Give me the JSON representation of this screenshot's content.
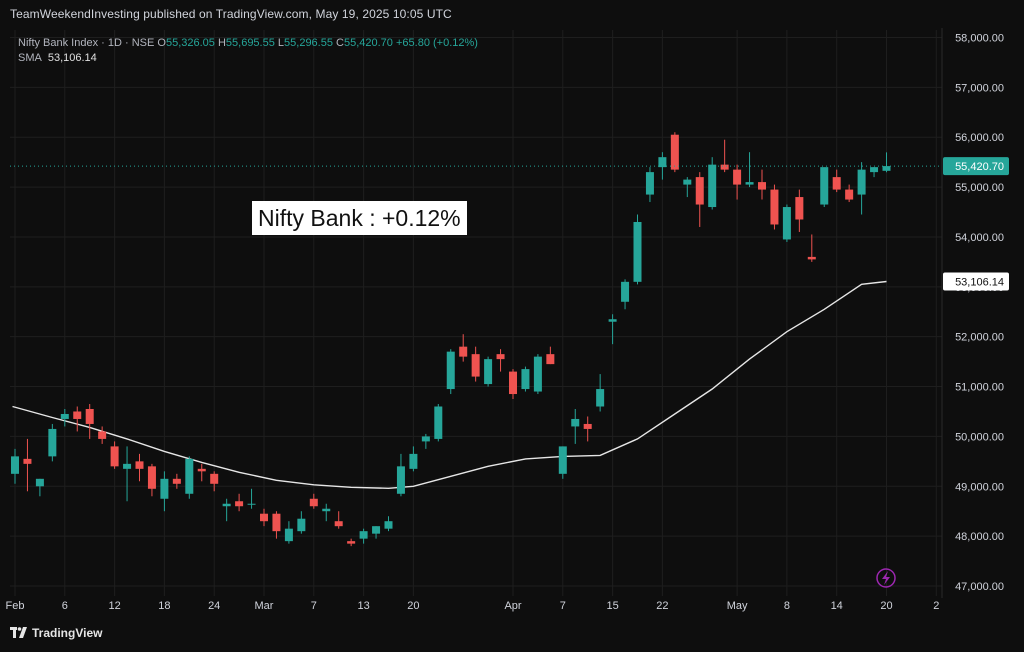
{
  "header": {
    "published_text": "TeamWeekendInvesting published on TradingView.com, May 19, 2025 10:05 UTC"
  },
  "legend": {
    "symbol_line": "Nifty Bank Index · 1D · NSE",
    "open_label": "O",
    "open_value": "55,326.05",
    "high_label": "H",
    "high_value": "55,695.55",
    "low_label": "L",
    "low_value": "55,296.55",
    "close_label": "C",
    "close_value": "55,420.70",
    "change": "+65.80 (+0.12%)",
    "sma_label": "SMA",
    "sma_value": "53,106.14"
  },
  "annotation": {
    "text": "Nifty Bank : +0.12%"
  },
  "footer": {
    "brand": "TradingView"
  },
  "colors": {
    "up": "#26a69a",
    "down": "#ef5350",
    "sma": "#e6e6e6",
    "grid": "#1e1e1e",
    "axis_text": "#d1d4dc",
    "price_tag_bg": "#26a69a"
  },
  "chart_data": {
    "type": "candlestick",
    "title": "",
    "ylim": [
      46800,
      58150
    ],
    "y_ticks": [
      47000,
      48000,
      49000,
      50000,
      51000,
      52000,
      53000,
      54000,
      55000,
      56000,
      57000,
      58000
    ],
    "y_tick_labels": [
      "47,000.00",
      "48,000.00",
      "49,000.00",
      "50,000.00",
      "51,000.00",
      "52,000.00",
      "53,000.00",
      "54,000.00",
      "55,000.00",
      "56,000.00",
      "57,000.00",
      "58,000.00"
    ],
    "x_ticks": [
      {
        "index": 0,
        "label": "Feb"
      },
      {
        "index": 4,
        "label": "6"
      },
      {
        "index": 8,
        "label": "12"
      },
      {
        "index": 12,
        "label": "18"
      },
      {
        "index": 16,
        "label": "24"
      },
      {
        "index": 20,
        "label": "Mar"
      },
      {
        "index": 24,
        "label": "7"
      },
      {
        "index": 28,
        "label": "13"
      },
      {
        "index": 32,
        "label": "20"
      },
      {
        "index": 40,
        "label": "Apr"
      },
      {
        "index": 44,
        "label": "7"
      },
      {
        "index": 48,
        "label": "15"
      },
      {
        "index": 52,
        "label": "22"
      },
      {
        "index": 58,
        "label": "May"
      },
      {
        "index": 62,
        "label": "8"
      },
      {
        "index": 66,
        "label": "14"
      },
      {
        "index": 70,
        "label": "20"
      },
      {
        "index": 74,
        "label": "2"
      }
    ],
    "last_price": 55420.7,
    "last_price_label": "55,420.70",
    "sma_last": 53106.14,
    "sma_last_label": "53,106.14",
    "candles": [
      {
        "o": 49250,
        "h": 49750,
        "l": 49050,
        "c": 49600
      },
      {
        "o": 49550,
        "h": 49950,
        "l": 48900,
        "c": 49450
      },
      {
        "o": 49000,
        "h": 49150,
        "l": 48800,
        "c": 49150
      },
      {
        "o": 49600,
        "h": 50250,
        "l": 49500,
        "c": 50150
      },
      {
        "o": 50350,
        "h": 50550,
        "l": 50200,
        "c": 50450
      },
      {
        "o": 50500,
        "h": 50600,
        "l": 50100,
        "c": 50350
      },
      {
        "o": 50550,
        "h": 50650,
        "l": 49950,
        "c": 50250
      },
      {
        "o": 50100,
        "h": 50200,
        "l": 49850,
        "c": 49950
      },
      {
        "o": 49800,
        "h": 49900,
        "l": 49350,
        "c": 49400
      },
      {
        "o": 49350,
        "h": 49800,
        "l": 48700,
        "c": 49450
      },
      {
        "o": 49500,
        "h": 49650,
        "l": 49100,
        "c": 49350
      },
      {
        "o": 49400,
        "h": 49450,
        "l": 48800,
        "c": 48950
      },
      {
        "o": 48750,
        "h": 49300,
        "l": 48500,
        "c": 49150
      },
      {
        "o": 49150,
        "h": 49250,
        "l": 48950,
        "c": 49050
      },
      {
        "o": 48850,
        "h": 49600,
        "l": 48750,
        "c": 49550
      },
      {
        "o": 49350,
        "h": 49450,
        "l": 49100,
        "c": 49300
      },
      {
        "o": 49250,
        "h": 49300,
        "l": 48900,
        "c": 49050
      },
      {
        "o": 48600,
        "h": 48750,
        "l": 48300,
        "c": 48650
      },
      {
        "o": 48700,
        "h": 48850,
        "l": 48500,
        "c": 48600
      },
      {
        "o": 48650,
        "h": 48950,
        "l": 48550,
        "c": 48650
      },
      {
        "o": 48450,
        "h": 48550,
        "l": 48200,
        "c": 48300
      },
      {
        "o": 48450,
        "h": 48500,
        "l": 47950,
        "c": 48100
      },
      {
        "o": 47900,
        "h": 48300,
        "l": 47850,
        "c": 48150
      },
      {
        "o": 48100,
        "h": 48500,
        "l": 48050,
        "c": 48350
      },
      {
        "o": 48750,
        "h": 48850,
        "l": 48550,
        "c": 48600
      },
      {
        "o": 48500,
        "h": 48650,
        "l": 48300,
        "c": 48550
      },
      {
        "o": 48300,
        "h": 48500,
        "l": 48150,
        "c": 48200
      },
      {
        "o": 47900,
        "h": 47950,
        "l": 47800,
        "c": 47850
      },
      {
        "o": 47950,
        "h": 48150,
        "l": 47850,
        "c": 48100
      },
      {
        "o": 48050,
        "h": 48200,
        "l": 47950,
        "c": 48200
      },
      {
        "o": 48150,
        "h": 48400,
        "l": 48100,
        "c": 48300
      },
      {
        "o": 48850,
        "h": 49650,
        "l": 48800,
        "c": 49400
      },
      {
        "o": 49350,
        "h": 49800,
        "l": 49300,
        "c": 49650
      },
      {
        "o": 49900,
        "h": 50050,
        "l": 49750,
        "c": 50000
      },
      {
        "o": 49950,
        "h": 50650,
        "l": 49900,
        "c": 50600
      },
      {
        "o": 50950,
        "h": 51750,
        "l": 50850,
        "c": 51700
      },
      {
        "o": 51800,
        "h": 52050,
        "l": 51500,
        "c": 51600
      },
      {
        "o": 51650,
        "h": 51800,
        "l": 51100,
        "c": 51200
      },
      {
        "o": 51050,
        "h": 51600,
        "l": 51000,
        "c": 51550
      },
      {
        "o": 51650,
        "h": 51750,
        "l": 51300,
        "c": 51550
      },
      {
        "o": 51300,
        "h": 51350,
        "l": 50750,
        "c": 50850
      },
      {
        "o": 50950,
        "h": 51400,
        "l": 50900,
        "c": 51350
      },
      {
        "o": 50900,
        "h": 51650,
        "l": 50850,
        "c": 51600
      },
      {
        "o": 51650,
        "h": 51800,
        "l": 51450,
        "c": 51450
      },
      {
        "o": 49250,
        "h": 49800,
        "l": 49150,
        "c": 49800
      },
      {
        "o": 50200,
        "h": 50550,
        "l": 49850,
        "c": 50350
      },
      {
        "o": 50250,
        "h": 50400,
        "l": 49900,
        "c": 50150
      },
      {
        "o": 50600,
        "h": 51250,
        "l": 50500,
        "c": 50950
      },
      {
        "o": 52300,
        "h": 52450,
        "l": 51850,
        "c": 52350
      },
      {
        "o": 52700,
        "h": 53150,
        "l": 52550,
        "c": 53100
      },
      {
        "o": 53100,
        "h": 54450,
        "l": 53050,
        "c": 54300
      },
      {
        "o": 54850,
        "h": 55400,
        "l": 54700,
        "c": 55300
      },
      {
        "o": 55400,
        "h": 55700,
        "l": 55150,
        "c": 55600
      },
      {
        "o": 56050,
        "h": 56100,
        "l": 55300,
        "c": 55350
      },
      {
        "o": 55050,
        "h": 55200,
        "l": 54800,
        "c": 55150
      },
      {
        "o": 55200,
        "h": 55300,
        "l": 54200,
        "c": 54650
      },
      {
        "o": 54600,
        "h": 55600,
        "l": 54550,
        "c": 55450
      },
      {
        "o": 55450,
        "h": 55950,
        "l": 55300,
        "c": 55350
      },
      {
        "o": 55350,
        "h": 55450,
        "l": 54750,
        "c": 55050
      },
      {
        "o": 55050,
        "h": 55700,
        "l": 55000,
        "c": 55100
      },
      {
        "o": 55100,
        "h": 55350,
        "l": 54750,
        "c": 54950
      },
      {
        "o": 54950,
        "h": 55050,
        "l": 54150,
        "c": 54250
      },
      {
        "o": 53950,
        "h": 54650,
        "l": 53900,
        "c": 54600
      },
      {
        "o": 54800,
        "h": 54950,
        "l": 54100,
        "c": 54350
      },
      {
        "o": 53600,
        "h": 54050,
        "l": 53500,
        "c": 53550
      },
      {
        "o": 54650,
        "h": 55350,
        "l": 54600,
        "c": 55400
      },
      {
        "o": 55200,
        "h": 55350,
        "l": 54900,
        "c": 54950
      },
      {
        "o": 54950,
        "h": 55050,
        "l": 54700,
        "c": 54750
      },
      {
        "o": 54850,
        "h": 55500,
        "l": 54450,
        "c": 55350
      },
      {
        "o": 55300,
        "h": 55400,
        "l": 55200,
        "c": 55400
      },
      {
        "o": 55326,
        "h": 55696,
        "l": 55297,
        "c": 55421
      }
    ],
    "sma_series": [
      [
        -0.2,
        50600
      ],
      [
        3,
        50380
      ],
      [
        6,
        50180
      ],
      [
        9,
        49950
      ],
      [
        12,
        49700
      ],
      [
        15,
        49480
      ],
      [
        18,
        49280
      ],
      [
        21,
        49120
      ],
      [
        24,
        49030
      ],
      [
        27,
        48980
      ],
      [
        30,
        48960
      ],
      [
        32,
        49000
      ],
      [
        35,
        49200
      ],
      [
        38,
        49400
      ],
      [
        41,
        49550
      ],
      [
        44,
        49600
      ],
      [
        47,
        49620
      ],
      [
        50,
        49950
      ],
      [
        53,
        50450
      ],
      [
        56,
        50950
      ],
      [
        59,
        51550
      ],
      [
        62,
        52100
      ],
      [
        65,
        52550
      ],
      [
        68,
        53050
      ],
      [
        70,
        53106
      ]
    ]
  }
}
